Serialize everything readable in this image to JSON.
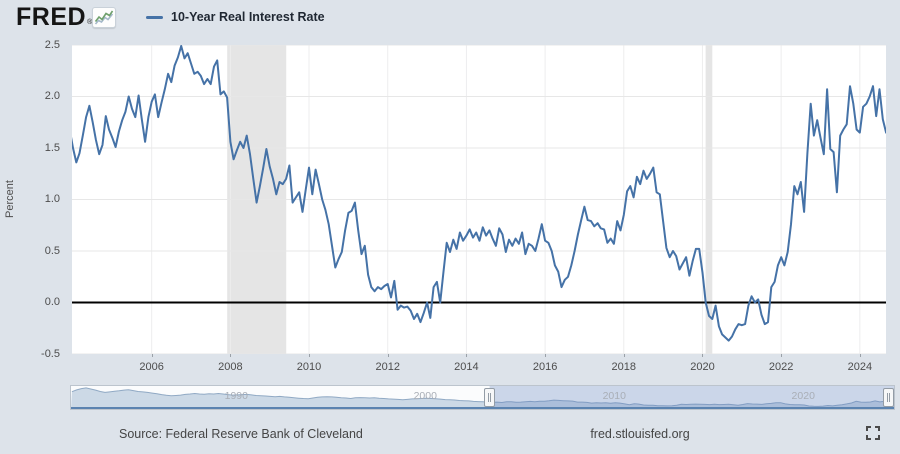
{
  "header": {
    "logo_text": "FRED",
    "registered_mark": "®",
    "series_title": "10-Year Real Interest Rate"
  },
  "y_axis": {
    "title": "Percent",
    "ticks": [
      "2.5",
      "2.0",
      "1.5",
      "1.0",
      "0.5",
      "0.0",
      "-0.5"
    ]
  },
  "x_axis": {
    "ticks": [
      "2006",
      "2008",
      "2010",
      "2012",
      "2014",
      "2016",
      "2018",
      "2020",
      "2022",
      "2024"
    ]
  },
  "navigator": {
    "labels": [
      "1990",
      "2000",
      "2010",
      "2020"
    ]
  },
  "footer": {
    "source": "Source: Federal Reserve Bank of Cleveland",
    "site": "fred.stlouisfed.org"
  },
  "colors": {
    "page_bg": "#dde3ea",
    "plot_bg": "#ffffff",
    "series": "#4572a7",
    "grid": "#e7e7e7",
    "vgrid": "#ededee",
    "recession": "#e5e5e5",
    "zero_line": "#000000",
    "nav_fill": "#ccd9e6",
    "nav_line": "#90a9c4",
    "nav_mask": "rgba(102,133,194,0.32)",
    "nav_bottom": "#5b83b0"
  },
  "chart_data": {
    "type": "line",
    "title": "10-Year Real Interest Rate",
    "ylabel": "Percent",
    "legend_position": "top-left",
    "grid": true,
    "frequency": "monthly",
    "start_year_fraction": 2003.9167,
    "xlim": [
      2003.975,
      2024.665
    ],
    "ylim": [
      -0.5,
      2.5
    ],
    "y_tick_values": [
      2.5,
      2.0,
      1.5,
      1.0,
      0.5,
      0.0,
      -0.5
    ],
    "x_tick_years": [
      2006,
      2008,
      2010,
      2012,
      2014,
      2016,
      2018,
      2020,
      2022,
      2024
    ],
    "recession_bands": [
      [
        2007.92,
        2009.42
      ],
      [
        2020.08,
        2020.25
      ]
    ],
    "values": [
      1.68,
      1.5,
      1.36,
      1.45,
      1.62,
      1.8,
      1.91,
      1.75,
      1.58,
      1.44,
      1.53,
      1.81,
      1.68,
      1.6,
      1.51,
      1.66,
      1.77,
      1.85,
      2.0,
      1.88,
      1.8,
      2.01,
      1.78,
      1.56,
      1.8,
      1.95,
      2.02,
      1.8,
      1.94,
      2.07,
      2.22,
      2.14,
      2.3,
      2.38,
      2.49,
      2.37,
      2.42,
      2.32,
      2.22,
      2.24,
      2.2,
      2.12,
      2.17,
      2.12,
      2.29,
      2.35,
      2.02,
      2.05,
      1.99,
      1.56,
      1.39,
      1.48,
      1.56,
      1.5,
      1.62,
      1.44,
      1.2,
      0.97,
      1.13,
      1.3,
      1.49,
      1.32,
      1.2,
      1.05,
      1.17,
      1.15,
      1.2,
      1.33,
      0.97,
      1.02,
      1.07,
      0.88,
      1.1,
      1.31,
      1.05,
      1.29,
      1.15,
      1.0,
      0.9,
      0.76,
      0.55,
      0.34,
      0.42,
      0.49,
      0.7,
      0.87,
      0.89,
      0.97,
      0.7,
      0.47,
      0.55,
      0.27,
      0.15,
      0.11,
      0.15,
      0.13,
      0.16,
      0.18,
      0.05,
      0.21,
      -0.07,
      -0.03,
      -0.05,
      -0.04,
      -0.08,
      -0.16,
      -0.11,
      -0.19,
      -0.1,
      0.0,
      -0.15,
      0.15,
      0.2,
      0.0,
      0.3,
      0.58,
      0.49,
      0.61,
      0.52,
      0.68,
      0.6,
      0.65,
      0.71,
      0.63,
      0.68,
      0.6,
      0.73,
      0.65,
      0.7,
      0.62,
      0.55,
      0.72,
      0.66,
      0.49,
      0.61,
      0.55,
      0.62,
      0.57,
      0.68,
      0.47,
      0.57,
      0.55,
      0.5,
      0.62,
      0.76,
      0.6,
      0.58,
      0.5,
      0.36,
      0.3,
      0.15,
      0.22,
      0.25,
      0.36,
      0.5,
      0.66,
      0.8,
      0.93,
      0.8,
      0.79,
      0.74,
      0.77,
      0.72,
      0.71,
      0.58,
      0.62,
      0.57,
      0.79,
      0.7,
      0.85,
      1.08,
      1.13,
      1.02,
      1.22,
      1.15,
      1.28,
      1.2,
      1.25,
      1.31,
      1.07,
      1.05,
      0.79,
      0.53,
      0.44,
      0.5,
      0.45,
      0.32,
      0.38,
      0.44,
      0.26,
      0.4,
      0.52,
      0.52,
      0.29,
      0.0,
      -0.13,
      -0.16,
      -0.03,
      -0.23,
      -0.31,
      -0.34,
      -0.37,
      -0.33,
      -0.26,
      -0.21,
      -0.22,
      -0.21,
      -0.03,
      0.06,
      0.0,
      0.03,
      -0.12,
      -0.21,
      -0.19,
      0.15,
      0.2,
      0.36,
      0.44,
      0.36,
      0.49,
      0.76,
      1.13,
      1.05,
      1.17,
      0.88,
      1.45,
      1.93,
      1.62,
      1.77,
      1.6,
      1.44,
      2.07,
      1.49,
      1.46,
      1.07,
      1.62,
      1.68,
      1.73,
      2.1,
      1.93,
      1.68,
      1.65,
      1.9,
      1.93,
      2.0,
      2.1,
      1.81,
      2.07,
      1.78,
      1.65
    ],
    "navigator": {
      "xlim": [
        1981.2,
        2024.75
      ],
      "ylim": [
        -0.6,
        8.3
      ],
      "start_year_fraction": 1981.25,
      "frequency": "quarterly",
      "tick_years": [
        1990,
        2000,
        2010,
        2020
      ],
      "selection": [
        2003.35,
        2024.75
      ],
      "values": [
        6.2,
        7.0,
        7.6,
        7.9,
        7.4,
        6.9,
        6.3,
        5.9,
        6.1,
        6.4,
        6.6,
        6.9,
        7.1,
        6.7,
        6.3,
        6.1,
        5.9,
        5.6,
        5.3,
        4.9,
        4.6,
        4.4,
        4.5,
        4.7,
        5.0,
        5.2,
        5.4,
        5.2,
        5.1,
        5.3,
        5.2,
        5.4,
        5.2,
        4.9,
        4.7,
        4.8,
        4.9,
        5.0,
        4.8,
        4.5,
        4.4,
        4.3,
        4.1,
        4.0,
        4.1,
        3.9,
        3.7,
        3.5,
        3.3,
        3.2,
        3.1,
        3.4,
        3.7,
        3.9,
        4.0,
        3.9,
        3.7,
        3.5,
        3.4,
        3.2,
        3.5,
        3.6,
        3.5,
        3.4,
        3.5,
        3.3,
        3.2,
        3.0,
        2.9,
        2.8,
        2.6,
        2.8,
        3.0,
        3.1,
        3.2,
        3.3,
        3.2,
        3.1,
        2.9,
        2.7,
        2.6,
        2.5,
        2.3,
        2.2,
        2.1,
        1.9,
        1.8,
        1.7,
        1.6,
        1.55,
        1.6,
        1.4,
        1.7,
        1.75,
        1.53,
        1.6,
        1.77,
        1.88,
        1.78,
        1.95,
        1.94,
        2.14,
        2.49,
        2.32,
        2.2,
        2.12,
        2.02,
        1.56,
        1.56,
        1.44,
        1.13,
        1.32,
        1.17,
        1.33,
        1.07,
        1.31,
        1.15,
        0.76,
        0.42,
        0.87,
        0.7,
        0.27,
        0.15,
        0.18,
        -0.07,
        -0.04,
        -0.11,
        0.0,
        0.2,
        0.58,
        0.52,
        0.65,
        0.68,
        0.65,
        0.55,
        0.49,
        0.62,
        0.47,
        0.5,
        0.6,
        0.36,
        0.22,
        0.5,
        0.93,
        0.74,
        0.71,
        0.57,
        0.85,
        1.02,
        1.28,
        1.31,
        0.79,
        0.5,
        0.38,
        0.4,
        0.29,
        -0.16,
        -0.31,
        -0.33,
        -0.22,
        0.06,
        -0.12,
        0.15,
        0.44,
        0.76,
        1.17,
        1.93,
        1.6,
        1.49,
        1.62,
        2.1,
        1.65,
        2.0,
        2.07,
        1.65
      ]
    }
  }
}
